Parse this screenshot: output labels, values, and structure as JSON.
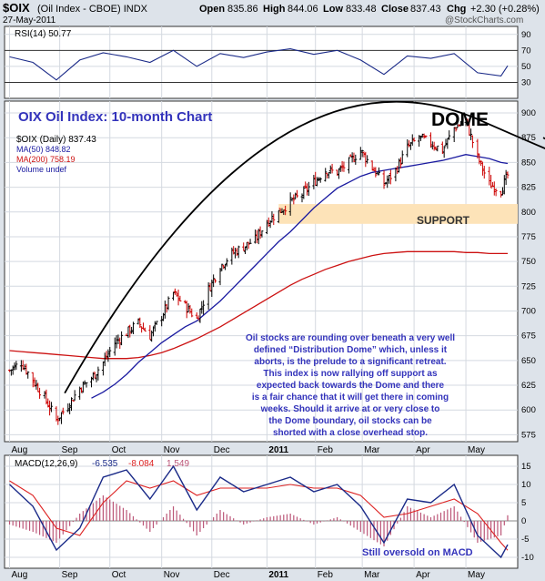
{
  "header": {
    "symbol": "$OIX",
    "name": "(Oil Index - CBOE) INDX",
    "date": "27-May-2011",
    "open_label": "Open",
    "open": "835.86",
    "high_label": "High",
    "high": "844.06",
    "low_label": "Low",
    "low": "833.48",
    "close_label": "Close",
    "close": "837.43",
    "chg_label": "Chg",
    "chg": "+2.30 (+0.28%)",
    "watermark": "@StockCharts.com"
  },
  "colors": {
    "background": "#dde3ea",
    "panel": "#ffffff",
    "up_bar": "#000000",
    "down_bar": "#cc0000",
    "ma50": "#1a1aa0",
    "ma200": "#cc1111",
    "support_zone": "#fde3b8",
    "annotation_text": "#3333bb",
    "macd_line": "#1a2a88",
    "macd_signal": "#dd2222",
    "histogram": "#bb5577"
  },
  "rsi_panel": {
    "label": "RSI(14) 50.77",
    "yticks": [
      30,
      50,
      70,
      90
    ],
    "ylim": [
      10,
      100
    ],
    "levels": [
      30,
      70
    ]
  },
  "price_panel": {
    "legend": [
      {
        "text": "$OIX (Daily) 837.43",
        "color": "#000000"
      },
      {
        "text": "MA(50) 848.82",
        "color": "#1a1aa0"
      },
      {
        "text": "MA(200) 758.19",
        "color": "#cc1111"
      },
      {
        "text": "Volume undef",
        "color": "#1a1aa0"
      }
    ],
    "title": "OIX Oil Index: 10-month Chart",
    "dome_label": "DOME",
    "support_label": "SUPPORT",
    "support_range": [
      788,
      808
    ],
    "yticks": [
      575,
      600,
      625,
      650,
      675,
      700,
      725,
      750,
      775,
      800,
      825,
      850,
      875,
      900
    ],
    "ylim": [
      568,
      912
    ],
    "annotation_lines": [
      "Oil stocks are rounding over beneath a very well",
      "defined “Distribution Dome” which, unless it",
      "aborts, is the prelude to a significant retreat.",
      "This index is now rallying off support as",
      "expected back towards the Dome and there",
      "is a fair chance that it will get there in coming",
      "weeks. Should it arrive at or very close to",
      "the Dome boundary, oil stocks can be",
      "shorted with a close overhead stop."
    ]
  },
  "macd_panel": {
    "label_prefix": "MACD(12,26,9)",
    "macd": "-6.535",
    "signal": "-8.084",
    "hist": "1.549",
    "yticks": [
      15,
      10,
      5,
      0,
      -5,
      -10
    ],
    "ytick_labels": [
      "15",
      "10",
      "5",
      "0",
      "-5",
      "-10"
    ],
    "ylim": [
      -13,
      18
    ],
    "annotation": "Still oversold on MACD"
  },
  "x_axis": {
    "months": [
      "Aug",
      "Sep",
      "Oct",
      "Nov",
      "Dec",
      "2011",
      "Feb",
      "Mar",
      "Apr",
      "May"
    ]
  },
  "chart_data": {
    "type": "line",
    "title": "OIX Oil Index: 10-month Chart",
    "x": [
      "2010-08-02",
      "2010-08-09",
      "2010-08-16",
      "2010-08-23",
      "2010-08-30",
      "2010-09-06",
      "2010-09-13",
      "2010-09-20",
      "2010-09-27",
      "2010-10-04",
      "2010-10-11",
      "2010-10-18",
      "2010-10-25",
      "2010-11-01",
      "2010-11-08",
      "2010-11-15",
      "2010-11-22",
      "2010-11-29",
      "2010-12-06",
      "2010-12-13",
      "2010-12-20",
      "2010-12-27",
      "2011-01-03",
      "2011-01-10",
      "2011-01-17",
      "2011-01-24",
      "2011-01-31",
      "2011-02-07",
      "2011-02-14",
      "2011-02-21",
      "2011-02-28",
      "2011-03-07",
      "2011-03-14",
      "2011-03-21",
      "2011-03-28",
      "2011-04-04",
      "2011-04-11",
      "2011-04-18",
      "2011-04-25",
      "2011-05-02",
      "2011-05-09",
      "2011-05-16",
      "2011-05-23",
      "2011-05-27"
    ],
    "series": [
      {
        "name": "$OIX (Daily)",
        "values": [
          640,
          648,
          630,
          612,
          590,
          605,
          622,
          632,
          648,
          668,
          678,
          688,
          675,
          695,
          718,
          705,
          692,
          722,
          745,
          758,
          765,
          772,
          790,
          800,
          810,
          818,
          830,
          842,
          840,
          850,
          862,
          845,
          828,
          842,
          865,
          875,
          870,
          862,
          885,
          892,
          855,
          828,
          822,
          837
        ]
      },
      {
        "name": "MA(50)",
        "values": [
          null,
          null,
          null,
          null,
          null,
          null,
          null,
          612,
          618,
          626,
          636,
          648,
          658,
          668,
          676,
          684,
          690,
          700,
          710,
          722,
          734,
          746,
          758,
          770,
          780,
          792,
          804,
          814,
          824,
          830,
          836,
          840,
          842,
          844,
          846,
          848,
          850,
          852,
          855,
          858,
          856,
          854,
          850,
          849
        ]
      },
      {
        "name": "MA(200)",
        "values": [
          660,
          659,
          658,
          657,
          656,
          655,
          654,
          653,
          652,
          652,
          652,
          653,
          655,
          658,
          662,
          667,
          672,
          678,
          684,
          691,
          698,
          705,
          712,
          719,
          726,
          732,
          737,
          742,
          746,
          750,
          753,
          756,
          758,
          759,
          760,
          760,
          760,
          760,
          760,
          759,
          759,
          758,
          758,
          758
        ]
      }
    ],
    "macd": {
      "x": [
        "2010-08-02",
        "2010-08-16",
        "2010-08-30",
        "2010-09-13",
        "2010-09-27",
        "2010-10-11",
        "2010-10-25",
        "2010-11-08",
        "2010-11-22",
        "2010-12-06",
        "2010-12-20",
        "2011-01-03",
        "2011-01-17",
        "2011-01-31",
        "2011-02-14",
        "2011-02-28",
        "2011-03-14",
        "2011-03-28",
        "2011-04-11",
        "2011-04-25",
        "2011-05-09",
        "2011-05-23",
        "2011-05-27"
      ],
      "macd": [
        10,
        4,
        -8,
        -2,
        12,
        14,
        6,
        15,
        3,
        12,
        8,
        10,
        12,
        8,
        10,
        4,
        -6,
        6,
        5,
        10,
        -4,
        -10,
        -6.535
      ],
      "signal": [
        11,
        7,
        -2,
        -4,
        5,
        11,
        9,
        11,
        7,
        9,
        9,
        9,
        10,
        9,
        9,
        7,
        1,
        2,
        4,
        6,
        2,
        -6,
        -8.084
      ]
    },
    "rsi": {
      "x": [
        "2010-08-02",
        "2010-08-16",
        "2010-08-30",
        "2010-09-13",
        "2010-09-27",
        "2010-10-11",
        "2010-10-25",
        "2010-11-08",
        "2010-11-22",
        "2010-12-06",
        "2010-12-20",
        "2011-01-03",
        "2011-01-17",
        "2011-01-31",
        "2011-02-14",
        "2011-02-28",
        "2011-03-14",
        "2011-03-28",
        "2011-04-11",
        "2011-04-25",
        "2011-05-09",
        "2011-05-23",
        "2011-05-27"
      ],
      "values": [
        62,
        55,
        33,
        58,
        67,
        62,
        55,
        70,
        50,
        66,
        61,
        68,
        72,
        65,
        70,
        58,
        40,
        63,
        60,
        66,
        42,
        38,
        50.77
      ]
    }
  }
}
